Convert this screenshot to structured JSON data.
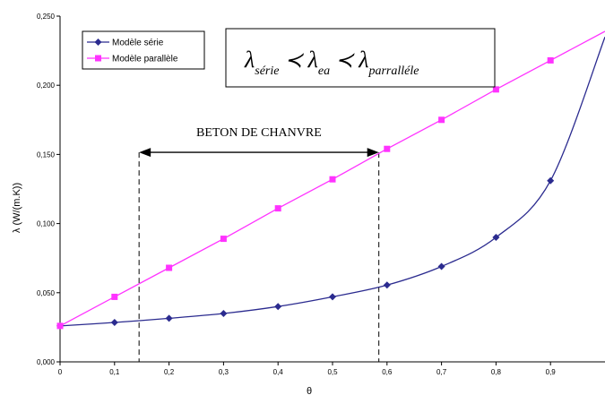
{
  "chart_data": {
    "type": "line",
    "title": "",
    "xlabel": "θ",
    "ylabel": "λ (W/(m.K))",
    "xlim": [
      0,
      1
    ],
    "ylim": [
      0,
      0.25
    ],
    "x_ticks": [
      "0",
      "0,1",
      "0,2",
      "0,3",
      "0,4",
      "0,5",
      "0,6",
      "0,7",
      "0,8",
      "0,9"
    ],
    "y_ticks": [
      "0,000",
      "0,050",
      "0,100",
      "0,150",
      "0,200",
      "0,250"
    ],
    "grid": false,
    "legend_position": "top-left",
    "series": [
      {
        "name": "Modèle série",
        "color": "#2b2b8f",
        "marker": "diamond",
        "x": [
          0,
          0.1,
          0.2,
          0.3,
          0.4,
          0.5,
          0.6,
          0.7,
          0.8,
          0.9
        ],
        "values": [
          0.026,
          0.0285,
          0.0315,
          0.035,
          0.04,
          0.047,
          0.0555,
          0.069,
          0.09,
          0.131
        ],
        "curve_end": [
          1.0,
          0.235
        ]
      },
      {
        "name": "Modèle parallèle",
        "color": "#ff33ff",
        "marker": "square",
        "x": [
          0,
          0.1,
          0.2,
          0.3,
          0.4,
          0.5,
          0.6,
          0.7,
          0.8,
          0.9
        ],
        "values": [
          0.026,
          0.047,
          0.068,
          0.089,
          0.111,
          0.132,
          0.154,
          0.175,
          0.197,
          0.218
        ],
        "curve_end": [
          1.0,
          0.239
        ]
      }
    ],
    "annotations": {
      "range_label": "BETON DE CHANVRE",
      "range_x": [
        0.145,
        0.585
      ],
      "formula": {
        "lambda": "λ",
        "sub1": "série",
        "sub2": "ea",
        "sub3": "parralléle",
        "relation": "≺"
      }
    }
  }
}
